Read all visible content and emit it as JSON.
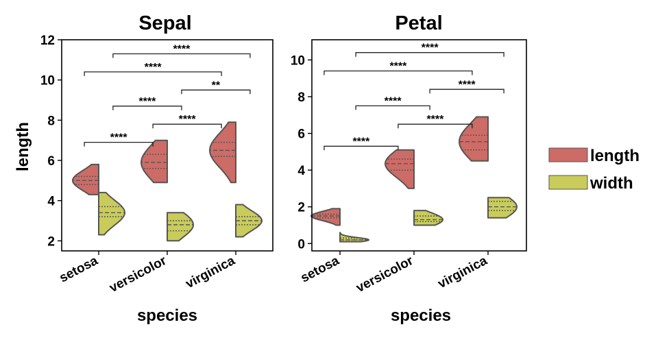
{
  "chart_data": [
    {
      "type": "violin",
      "title": "Sepal",
      "xlabel": "species",
      "ylabel": "length",
      "categories": [
        "setosa",
        "versicolor",
        "virginica"
      ],
      "ylim": [
        1.5,
        12
      ],
      "yticks": [
        2,
        4,
        6,
        8,
        10,
        12
      ],
      "split": true,
      "inner": "quartile",
      "series": [
        {
          "name": "length",
          "color": "#CD6B66",
          "stats": [
            {
              "min": 4.3,
              "q1": 4.8,
              "median": 5.0,
              "q3": 5.2,
              "max": 5.8
            },
            {
              "min": 4.9,
              "q1": 5.6,
              "median": 5.9,
              "q3": 6.3,
              "max": 7.0
            },
            {
              "min": 4.9,
              "q1": 6.2,
              "median": 6.5,
              "q3": 6.9,
              "max": 7.9
            }
          ]
        },
        {
          "name": "width",
          "color": "#C9CC5A",
          "stats": [
            {
              "min": 2.3,
              "q1": 3.2,
              "median": 3.4,
              "q3": 3.7,
              "max": 4.4
            },
            {
              "min": 2.0,
              "q1": 2.5,
              "median": 2.8,
              "q3": 3.0,
              "max": 3.4
            },
            {
              "min": 2.2,
              "q1": 2.8,
              "median": 3.0,
              "q3": 3.2,
              "max": 3.8
            }
          ]
        }
      ],
      "annotations": [
        {
          "from": "setosa:length",
          "to": "versicolor:length",
          "y": 6.9,
          "label": "****"
        },
        {
          "from": "versicolor:length",
          "to": "virginica:length",
          "y": 7.8,
          "label": "****"
        },
        {
          "from": "setosa:width",
          "to": "versicolor:width",
          "y": 8.7,
          "label": "****"
        },
        {
          "from": "versicolor:width",
          "to": "virginica:width",
          "y": 9.5,
          "label": "**"
        },
        {
          "from": "setosa:length",
          "to": "virginica:length",
          "y": 10.4,
          "label": "****"
        },
        {
          "from": "setosa:width",
          "to": "virginica:width",
          "y": 11.3,
          "label": "****"
        }
      ]
    },
    {
      "type": "violin",
      "title": "Petal",
      "xlabel": "species",
      "ylabel": "",
      "categories": [
        "setosa",
        "versicolor",
        "virginica"
      ],
      "ylim": [
        -0.4,
        11.1
      ],
      "yticks": [
        0,
        2,
        4,
        6,
        8,
        10
      ],
      "split": true,
      "inner": "quartile",
      "series": [
        {
          "name": "length",
          "color": "#CD6B66",
          "stats": [
            {
              "min": 1.0,
              "q1": 1.4,
              "median": 1.5,
              "q3": 1.6,
              "max": 1.9
            },
            {
              "min": 3.0,
              "q1": 4.0,
              "median": 4.35,
              "q3": 4.6,
              "max": 5.1
            },
            {
              "min": 4.5,
              "q1": 5.1,
              "median": 5.55,
              "q3": 5.9,
              "max": 6.9
            }
          ]
        },
        {
          "name": "width",
          "color": "#C9CC5A",
          "stats": [
            {
              "min": 0.1,
              "q1": 0.2,
              "median": 0.2,
              "q3": 0.3,
              "max": 0.6
            },
            {
              "min": 1.0,
              "q1": 1.2,
              "median": 1.3,
              "q3": 1.5,
              "max": 1.8
            },
            {
              "min": 1.4,
              "q1": 1.8,
              "median": 2.0,
              "q3": 2.3,
              "max": 2.5
            }
          ]
        }
      ],
      "annotations": [
        {
          "from": "setosa:length",
          "to": "versicolor:length",
          "y": 5.3,
          "label": "****"
        },
        {
          "from": "versicolor:length",
          "to": "virginica:length",
          "y": 6.5,
          "label": "****"
        },
        {
          "from": "setosa:width",
          "to": "versicolor:width",
          "y": 7.5,
          "label": "****"
        },
        {
          "from": "versicolor:width",
          "to": "virginica:width",
          "y": 8.4,
          "label": "****"
        },
        {
          "from": "setosa:length",
          "to": "virginica:length",
          "y": 9.4,
          "label": "****"
        },
        {
          "from": "setosa:width",
          "to": "virginica:width",
          "y": 10.4,
          "label": "****"
        }
      ]
    }
  ],
  "legend": {
    "location": "right",
    "items": [
      {
        "label": "length",
        "color": "#CD6B66"
      },
      {
        "label": "width",
        "color": "#C9CC5A"
      }
    ]
  }
}
